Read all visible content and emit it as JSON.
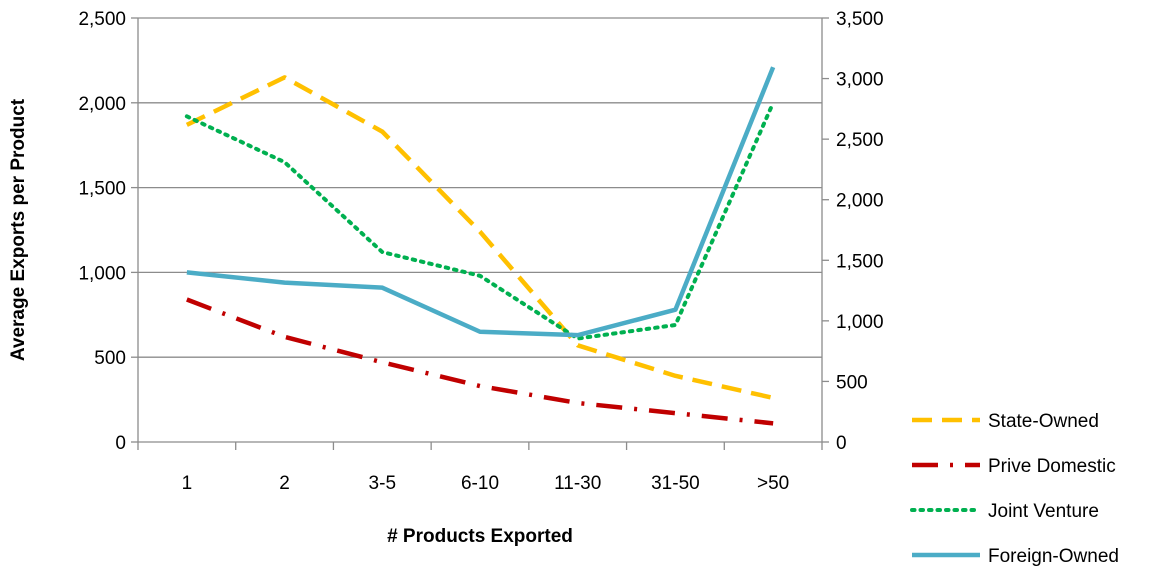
{
  "chart_data": {
    "type": "line",
    "title": "",
    "xlabel": "# Products Exported",
    "ylabel": "Average Exports per Product",
    "categories": [
      "1",
      "2",
      "3-5",
      "6-10",
      "11-30",
      "31-50",
      ">50"
    ],
    "y_left": {
      "ylim": [
        0,
        2500
      ],
      "ticks": [
        0,
        500,
        1000,
        1500,
        2000,
        2500
      ],
      "tick_labels": [
        "0",
        "500",
        "1,000",
        "1,500",
        "2,000",
        "2,500"
      ]
    },
    "y_right": {
      "ylim": [
        0,
        3500
      ],
      "ticks": [
        0,
        500,
        1000,
        1500,
        2000,
        2500,
        3000,
        3500
      ],
      "tick_labels": [
        "0",
        "500",
        "1,000",
        "1,500",
        "2,000",
        "2,500",
        "3,000",
        "3,500"
      ]
    },
    "grid": true,
    "legend_position": "bottom-right",
    "series": [
      {
        "name": "State-Owned",
        "axis": "left",
        "color": "#FFC000",
        "style": "dashed",
        "values": [
          1870,
          2150,
          1830,
          1240,
          570,
          390,
          260
        ]
      },
      {
        "name": "Prive Domestic",
        "axis": "left",
        "color": "#C00000",
        "style": "dash-dot",
        "values": [
          840,
          620,
          470,
          330,
          230,
          170,
          110
        ]
      },
      {
        "name": "Joint Venture",
        "axis": "left",
        "color": "#00B050",
        "style": "dotted",
        "values": [
          1920,
          1650,
          1120,
          980,
          610,
          690,
          2000
        ]
      },
      {
        "name": "Foreign-Owned",
        "axis": "left",
        "color": "#4BACC6",
        "style": "solid",
        "values": [
          1000,
          940,
          910,
          650,
          630,
          780,
          2210
        ]
      }
    ]
  }
}
